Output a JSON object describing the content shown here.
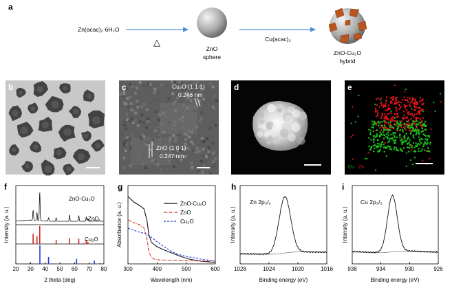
{
  "panels": {
    "a": {
      "label": "a",
      "precursor": "Zn(acac)₂·6H₂O",
      "heat": "△",
      "reagent": "Cu(acac)₂",
      "sphere_name": "ZnO",
      "sphere_sub": "sphere",
      "hybrid_name": "ZnO-Cu₂O",
      "hybrid_sub": "hybrid"
    },
    "b": {
      "label": "b"
    },
    "c": {
      "label": "c",
      "cu2o_plane": "Cu₂O (1 1 1)",
      "cu2o_spacing": "0.246 nm",
      "zno_plane": "ZnO (1 0 1)",
      "zno_spacing": "0.247 nm"
    },
    "d": {
      "label": "d"
    },
    "e": {
      "label": "e",
      "legend_cu": "Cu",
      "legend_zn": "Zn"
    },
    "f": {
      "label": "f",
      "ylabel": "Intensity (a. u.)",
      "xlabel": "2 theta (deg)",
      "row1": "ZnO-Cu₂O",
      "row2": "ZnO",
      "row3": "Cu₂O"
    },
    "g": {
      "label": "g",
      "ylabel": "Absorbance (a. u.)",
      "xlabel": "Wavelength (nm)",
      "legend": [
        "ZnO-Cu₂O",
        "ZnO",
        "Cu₂O"
      ]
    },
    "h": {
      "label": "h",
      "ylabel": "Intensity (a. u.)",
      "xlabel": "Binding energy (eV)",
      "peak": "Zn 2p₃/₂"
    },
    "i": {
      "label": "i",
      "ylabel": "Intensity (a. u.)",
      "xlabel": "Binding energy (eV)",
      "peak": "Cu 2p₃/₂"
    }
  },
  "colors": {
    "arrow": "#4a8fd8",
    "cu2o_patch": "#b9561f",
    "hybrid_line": "#111111",
    "zno_line": "#d0221a",
    "cu2o_line": "#1f3fd8",
    "eds_cu": "#19c21b",
    "eds_zn": "#e0161a"
  },
  "chart_data": [
    {
      "panel": "f",
      "type": "line",
      "xlabel": "2 theta (deg)",
      "ylabel": "Intensity (a. u.)",
      "xlim": [
        20,
        80
      ],
      "xticks": [
        20,
        30,
        40,
        50,
        60,
        70,
        80
      ],
      "series": [
        {
          "name": "ZnO-Cu₂O",
          "peaks": [
            [
              31.8,
              0.35
            ],
            [
              34.4,
              0.28
            ],
            [
              36.3,
              1.0
            ],
            [
              42.3,
              0.12
            ],
            [
              47.5,
              0.12
            ],
            [
              56.6,
              0.22
            ],
            [
              62.9,
              0.2
            ],
            [
              68.0,
              0.15
            ],
            [
              69.1,
              0.1
            ],
            [
              73.5,
              0.05
            ],
            [
              77.0,
              0.05
            ]
          ]
        },
        {
          "name": "ZnO",
          "sticks": [
            [
              31.8,
              0.57
            ],
            [
              34.4,
              0.44
            ],
            [
              36.3,
              1.0
            ],
            [
              47.5,
              0.23
            ],
            [
              56.6,
              0.32
            ],
            [
              62.9,
              0.29
            ],
            [
              66.4,
              0.04
            ],
            [
              68.0,
              0.23
            ],
            [
              69.1,
              0.11
            ]
          ]
        },
        {
          "name": "Cu₂O",
          "sticks": [
            [
              29.6,
              0.05
            ],
            [
              36.4,
              1.0
            ],
            [
              42.3,
              0.37
            ],
            [
              61.4,
              0.27
            ],
            [
              73.5,
              0.17
            ],
            [
              77.4,
              0.04
            ]
          ]
        }
      ]
    },
    {
      "panel": "g",
      "type": "line",
      "xlabel": "Wavelength (nm)",
      "ylabel": "Absorbance (a. u.)",
      "xlim": [
        300,
        600
      ],
      "xticks": [
        300,
        400,
        500,
        600
      ],
      "series": [
        {
          "name": "ZnO-Cu₂O",
          "x": [
            300,
            320,
            340,
            355,
            365,
            372,
            380,
            390,
            400,
            420,
            450,
            480,
            510,
            550,
            600
          ],
          "y": [
            0.96,
            0.88,
            0.83,
            0.78,
            0.62,
            0.4,
            0.3,
            0.26,
            0.23,
            0.19,
            0.14,
            0.09,
            0.05,
            0.02,
            0.0
          ]
        },
        {
          "name": "ZnO",
          "x": [
            300,
            320,
            340,
            355,
            365,
            372,
            380,
            390,
            400,
            450,
            500,
            600
          ],
          "y": [
            0.62,
            0.58,
            0.55,
            0.5,
            0.35,
            0.15,
            0.08,
            0.05,
            0.04,
            0.03,
            0.025,
            0.02
          ]
        },
        {
          "name": "Cu₂O",
          "x": [
            300,
            320,
            340,
            360,
            380,
            400,
            420,
            450,
            470,
            500,
            550,
            600
          ],
          "y": [
            0.5,
            0.47,
            0.44,
            0.42,
            0.37,
            0.3,
            0.24,
            0.16,
            0.12,
            0.09,
            0.05,
            0.02
          ]
        }
      ]
    },
    {
      "panel": "h",
      "type": "line",
      "xlabel": "Binding energy (eV)",
      "ylabel": "Intensity (a. u.)",
      "xlim": [
        1028,
        1016
      ],
      "xticks": [
        1028,
        1024,
        1020,
        1016
      ],
      "series": [
        {
          "name": "Zn 2p₃/₂",
          "peak_center": 1021.8,
          "fwhm": 1.9,
          "height": 1.0,
          "baseline_left": 0.08,
          "baseline_right": 0.06
        }
      ]
    },
    {
      "panel": "i",
      "type": "line",
      "xlabel": "Binding energy (eV)",
      "ylabel": "Intensity (a. u.)",
      "xlim": [
        938,
        926
      ],
      "xticks": [
        938,
        934,
        930,
        926
      ],
      "series": [
        {
          "name": "Cu 2p₃/₂",
          "peak_center": 932.4,
          "fwhm": 1.6,
          "height": 1.0,
          "baseline_left": 0.12,
          "baseline_right": 0.06
        }
      ]
    }
  ]
}
